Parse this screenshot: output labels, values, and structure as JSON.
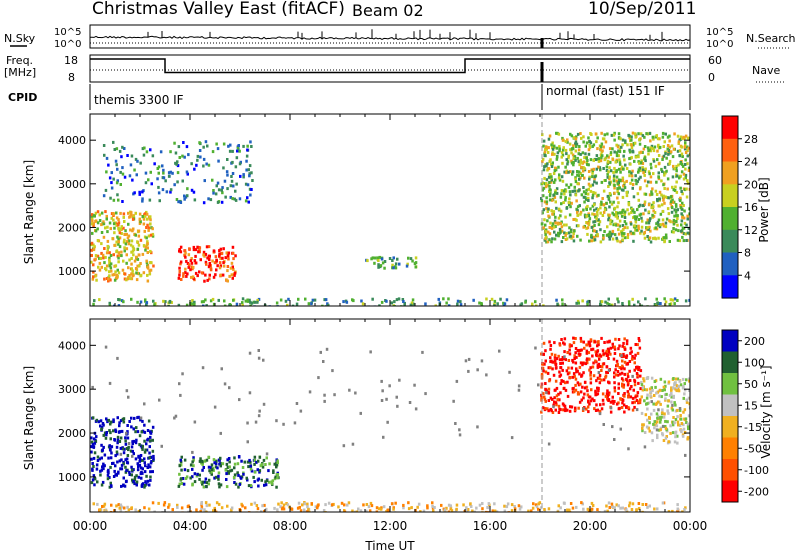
{
  "header": {
    "title": "Christmas Valley East (fitACF)",
    "beam": "Beam 02",
    "date": "10/Sep/2011"
  },
  "params": {
    "nsky_label": "N.Sky",
    "nsearch_label": "N.Search",
    "freq_label": "Freq.",
    "freq_unit": "[MHz]",
    "nave_label": "Nave",
    "cpid_label": "CPID",
    "nsky_ticks": [
      "10^5",
      "10^0"
    ],
    "freq_ticks": [
      "18",
      "8"
    ],
    "nave_ticks": [
      "60",
      "0"
    ],
    "cpid_modes": [
      {
        "label": "themis 3300 IF",
        "start_hour": 0,
        "end_hour": 18
      },
      {
        "label": "normal (fast) 151 IF",
        "start_hour": 18,
        "end_hour": 24
      }
    ],
    "freq_segments": [
      {
        "start_hour": 0,
        "end_hour": 3,
        "mhz": 16.5
      },
      {
        "start_hour": 3,
        "end_hour": 15,
        "mhz": 11.5
      },
      {
        "start_hour": 15,
        "end_hour": 24,
        "mhz": 16.5
      }
    ]
  },
  "colors": {
    "power": [
      "#0000ff",
      "#2060c0",
      "#3a8a5a",
      "#50b030",
      "#c8d020",
      "#f0a020",
      "#ff6010",
      "#ff0000"
    ],
    "velocity": [
      "#0000c0",
      "#206030",
      "#70c040",
      "#c0c0c0",
      "#f0b020",
      "#ff8000",
      "#ff5000",
      "#ff0000"
    ],
    "groundscatter": "#808080"
  },
  "chart_data": [
    {
      "type": "heatmap",
      "title": "",
      "xlabel": "",
      "ylabel": "Slant Range [km]",
      "xlim": [
        0,
        24
      ],
      "ylim": [
        200,
        4600
      ],
      "x_ticks": [],
      "y_ticks": [
        "1000",
        "2000",
        "3000",
        "4000"
      ],
      "colorbar": {
        "label": "Power [dB]",
        "ticks": [
          "4",
          "8",
          "12",
          "16",
          "20",
          "24",
          "28"
        ],
        "range": [
          0,
          32
        ]
      },
      "regions": [
        {
          "name": "dusk-arc",
          "hours": [
            0.0,
            2.5
          ],
          "range_km": [
            800,
            2400
          ],
          "level_db": 18
        },
        {
          "name": "evening-enhancement",
          "hours": [
            3.5,
            5.8
          ],
          "range_km": [
            800,
            1600
          ],
          "level_db": 26
        },
        {
          "name": "far-range-patches",
          "hours": [
            0.5,
            6.5
          ],
          "range_km": [
            2600,
            4000
          ],
          "level_db": 6
        },
        {
          "name": "ground-band",
          "hours": [
            0,
            24
          ],
          "range_km": [
            200,
            400
          ],
          "level_db": 10
        },
        {
          "name": "night-patch",
          "hours": [
            11.0,
            13.0
          ],
          "range_km": [
            1100,
            1350
          ],
          "level_db": 10
        },
        {
          "name": "dawn-echoes",
          "hours": [
            18.0,
            24.0
          ],
          "range_km": [
            1700,
            4200
          ],
          "level_db": 14
        }
      ]
    },
    {
      "type": "heatmap",
      "title": "",
      "xlabel": "Time UT",
      "ylabel": "Slant Range [km]",
      "xlim": [
        0,
        24
      ],
      "ylim": [
        200,
        4600
      ],
      "x_ticks": [
        "00:00",
        "04:00",
        "08:00",
        "12:00",
        "16:00",
        "20:00",
        "00:00"
      ],
      "y_ticks": [
        "1000",
        "2000",
        "3000",
        "4000"
      ],
      "colorbar": {
        "label": "Velocity [m s⁻¹]",
        "ticks": [
          "200",
          "100",
          "50",
          "15",
          "-15",
          "-50",
          "-100",
          "-200"
        ],
        "range": [
          -250,
          250
        ]
      },
      "regions": [
        {
          "name": "dusk-arc",
          "hours": [
            0.0,
            2.5
          ],
          "range_km": [
            800,
            2400
          ],
          "vel_ms": 150
        },
        {
          "name": "evening-enhancement",
          "hours": [
            3.5,
            7.5
          ],
          "range_km": [
            800,
            1500
          ],
          "vel_ms": 120
        },
        {
          "name": "ground-band",
          "hours": [
            0,
            24
          ],
          "range_km": [
            200,
            450
          ],
          "vel_ms": -30
        },
        {
          "name": "dawn-red-flow",
          "hours": [
            18.0,
            22.0
          ],
          "range_km": [
            2500,
            4200
          ],
          "vel_ms": -220
        },
        {
          "name": "late-grey",
          "hours": [
            22.0,
            24.0
          ],
          "range_km": [
            1800,
            3300
          ],
          "vel_ms": 0
        }
      ]
    }
  ]
}
